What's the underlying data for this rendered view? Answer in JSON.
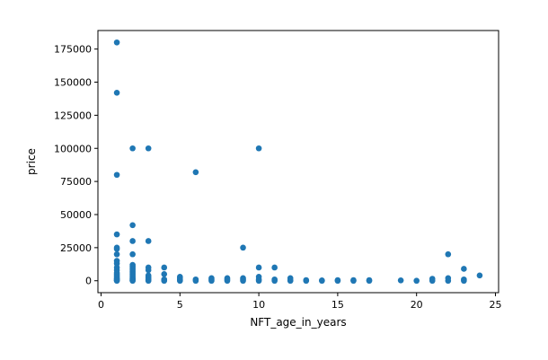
{
  "chart_data": {
    "type": "scatter",
    "title": "",
    "xlabel": "NFT_age_in_years",
    "ylabel": "price",
    "xlim": [
      -0.2,
      25.2
    ],
    "ylim": [
      -9000,
      189000
    ],
    "xticks": [
      0,
      5,
      10,
      15,
      20,
      25
    ],
    "yticks": [
      0,
      25000,
      50000,
      75000,
      100000,
      125000,
      150000,
      175000
    ],
    "grid": false,
    "legend": "none",
    "marker_color": "#1f77b4",
    "points": [
      [
        1,
        180000
      ],
      [
        1,
        142000
      ],
      [
        1,
        80000
      ],
      [
        1,
        35000
      ],
      [
        1,
        25000
      ],
      [
        1,
        24000
      ],
      [
        1,
        20000
      ],
      [
        1,
        15000
      ],
      [
        1,
        13000
      ],
      [
        1,
        10000
      ],
      [
        1,
        8000
      ],
      [
        1,
        6000
      ],
      [
        1,
        5000
      ],
      [
        1,
        4000
      ],
      [
        1,
        3000
      ],
      [
        1,
        2000
      ],
      [
        1,
        1500
      ],
      [
        1,
        1000
      ],
      [
        1,
        500
      ],
      [
        1,
        200
      ],
      [
        1,
        0
      ],
      [
        2,
        100000
      ],
      [
        2,
        42000
      ],
      [
        2,
        30000
      ],
      [
        2,
        20000
      ],
      [
        2,
        12000
      ],
      [
        2,
        11000
      ],
      [
        2,
        10000
      ],
      [
        2,
        9000
      ],
      [
        2,
        8000
      ],
      [
        2,
        7000
      ],
      [
        2,
        6000
      ],
      [
        2,
        5000
      ],
      [
        2,
        4000
      ],
      [
        2,
        3000
      ],
      [
        2,
        2000
      ],
      [
        2,
        1500
      ],
      [
        2,
        1000
      ],
      [
        2,
        500
      ],
      [
        2,
        200
      ],
      [
        2,
        0
      ],
      [
        3,
        100000
      ],
      [
        3,
        30000
      ],
      [
        3,
        10000
      ],
      [
        3,
        8000
      ],
      [
        3,
        4000
      ],
      [
        3,
        3000
      ],
      [
        3,
        2000
      ],
      [
        3,
        1000
      ],
      [
        3,
        500
      ],
      [
        3,
        0
      ],
      [
        4,
        10000
      ],
      [
        4,
        5000
      ],
      [
        4,
        1000
      ],
      [
        4,
        500
      ],
      [
        4,
        0
      ],
      [
        5,
        3000
      ],
      [
        5,
        2000
      ],
      [
        5,
        1000
      ],
      [
        5,
        500
      ],
      [
        5,
        0
      ],
      [
        6,
        82000
      ],
      [
        6,
        1000
      ],
      [
        6,
        0
      ],
      [
        7,
        2000
      ],
      [
        7,
        1000
      ],
      [
        7,
        0
      ],
      [
        8,
        2000
      ],
      [
        8,
        1000
      ],
      [
        8,
        0
      ],
      [
        9,
        25000
      ],
      [
        9,
        2000
      ],
      [
        9,
        1000
      ],
      [
        9,
        0
      ],
      [
        10,
        100000
      ],
      [
        10,
        10000
      ],
      [
        10,
        3000
      ],
      [
        10,
        1000
      ],
      [
        10,
        0
      ],
      [
        11,
        10000
      ],
      [
        11,
        1000
      ],
      [
        11,
        0
      ],
      [
        12,
        2000
      ],
      [
        12,
        500
      ],
      [
        12,
        0
      ],
      [
        13,
        500
      ],
      [
        13,
        0
      ],
      [
        14,
        300
      ],
      [
        14,
        0
      ],
      [
        15,
        500
      ],
      [
        15,
        0
      ],
      [
        16,
        500
      ],
      [
        16,
        0
      ],
      [
        17,
        500
      ],
      [
        17,
        0
      ],
      [
        19,
        300
      ],
      [
        20,
        0
      ],
      [
        21,
        1500
      ],
      [
        21,
        0
      ],
      [
        22,
        20000
      ],
      [
        22,
        2000
      ],
      [
        22,
        0
      ],
      [
        23,
        9000
      ],
      [
        23,
        1000
      ],
      [
        23,
        0
      ],
      [
        24,
        4000
      ]
    ]
  }
}
